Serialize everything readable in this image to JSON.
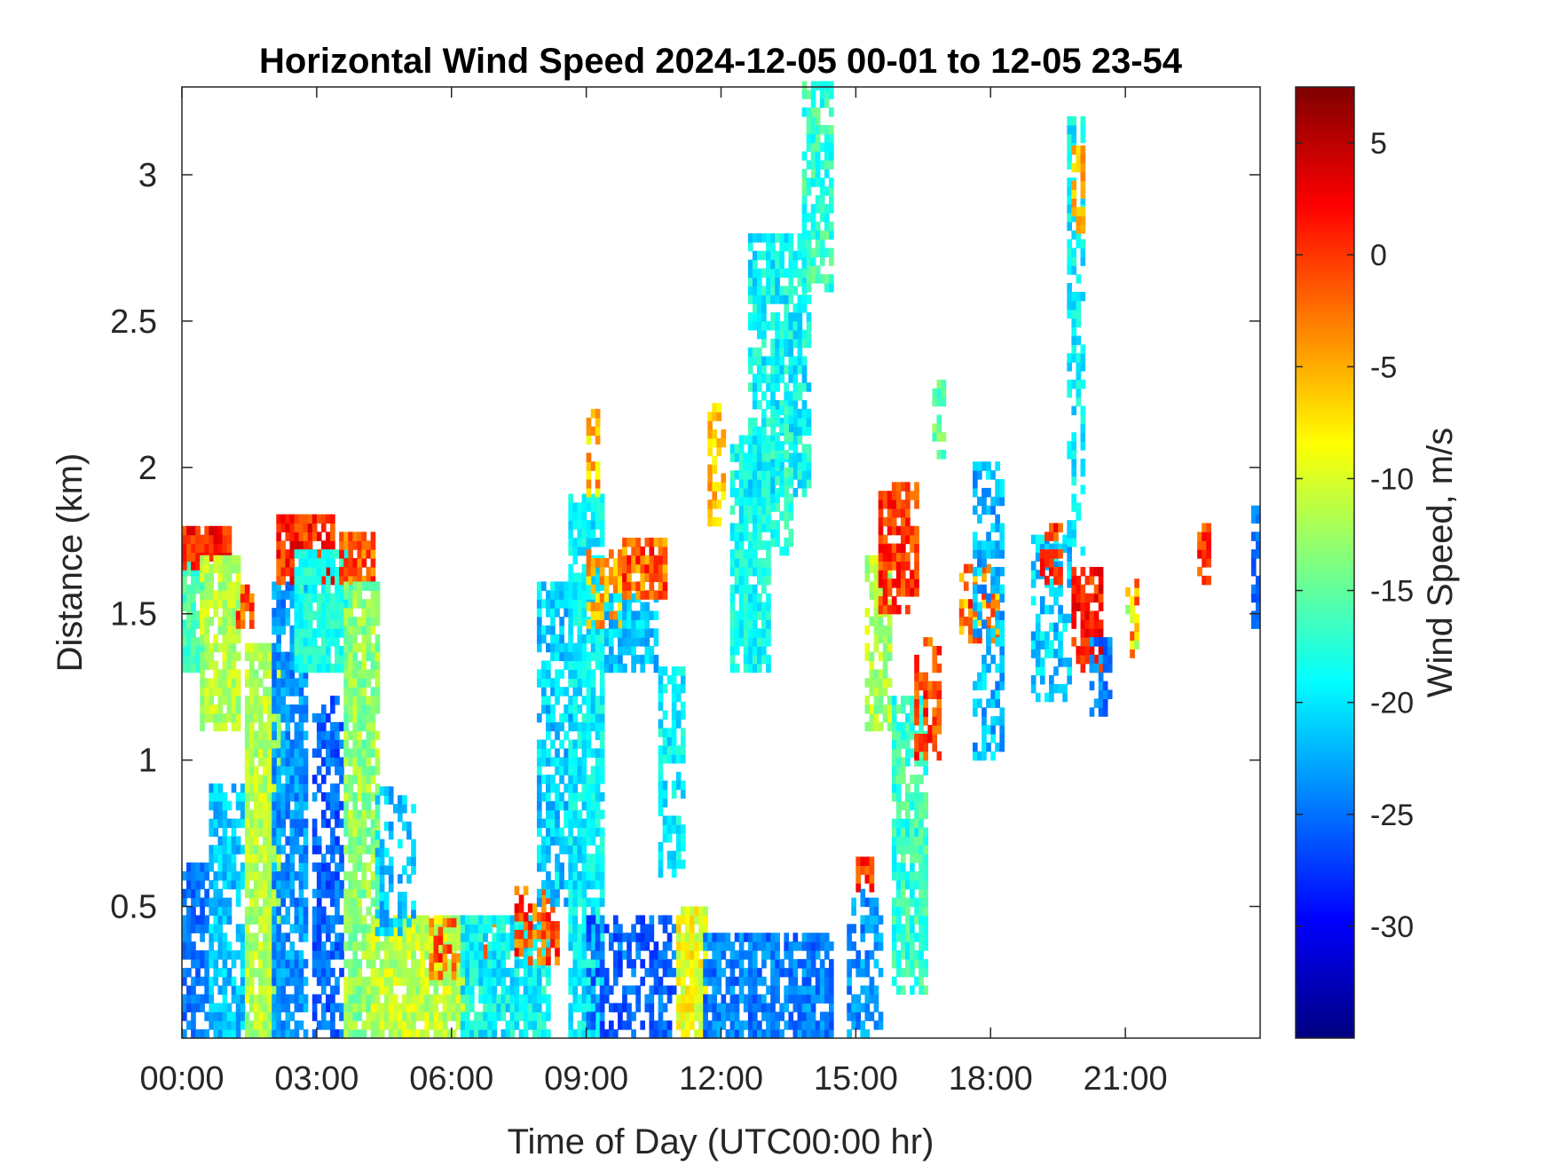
{
  "chart_data": {
    "type": "heatmap",
    "title": "Horizontal Wind Speed 2024-12-05 00-01 to 12-05 23-54",
    "xlabel": "Time of Day (UTC00:00 hr)",
    "ylabel": "Distance (km)",
    "xlim_hours": [
      0,
      24
    ],
    "ylim_km": [
      0.05,
      3.3
    ],
    "x_ticks": [
      {
        "value": 0,
        "label": "00:00"
      },
      {
        "value": 3,
        "label": "03:00"
      },
      {
        "value": 6,
        "label": "06:00"
      },
      {
        "value": 9,
        "label": "09:00"
      },
      {
        "value": 12,
        "label": "12:00"
      },
      {
        "value": 15,
        "label": "15:00"
      },
      {
        "value": 18,
        "label": "18:00"
      },
      {
        "value": 21,
        "label": "21:00"
      }
    ],
    "y_ticks": [
      {
        "value": 0.5,
        "label": "0.5"
      },
      {
        "value": 1,
        "label": "1"
      },
      {
        "value": 1.5,
        "label": "1.5"
      },
      {
        "value": 2,
        "label": "2"
      },
      {
        "value": 2.5,
        "label": "2.5"
      },
      {
        "value": 3,
        "label": "3"
      }
    ],
    "colorbar": {
      "label": "Wind Speed, m/s",
      "colormap": "jet",
      "range": [
        -35,
        7.5
      ],
      "ticks": [
        {
          "value": 5,
          "label": "5"
        },
        {
          "value": 0,
          "label": "0"
        },
        {
          "value": -5,
          "label": "-5"
        },
        {
          "value": -10,
          "label": "-10"
        },
        {
          "value": -15,
          "label": "-15"
        },
        {
          "value": -20,
          "label": "-20"
        },
        {
          "value": -25,
          "label": "-25"
        },
        {
          "value": -30,
          "label": "-30"
        }
      ]
    },
    "grid": false,
    "cell_size": {
      "hours": 0.1,
      "km": 0.03
    },
    "regions": [
      {
        "t": [
          0.0,
          0.6
        ],
        "z": [
          0.05,
          0.65
        ],
        "v": [
          -27,
          -23
        ],
        "density": 0.7
      },
      {
        "t": [
          0.0,
          0.5
        ],
        "z": [
          1.3,
          1.75
        ],
        "v": [
          -18,
          -14
        ],
        "density": 0.9
      },
      {
        "t": [
          0.0,
          1.1
        ],
        "z": [
          1.65,
          1.8
        ],
        "v": [
          -2,
          4
        ],
        "density": 0.9
      },
      {
        "t": [
          0.4,
          1.3
        ],
        "z": [
          1.1,
          1.7
        ],
        "v": [
          -14,
          -9
        ],
        "density": 0.9
      },
      {
        "t": [
          0.6,
          1.4
        ],
        "z": [
          0.05,
          0.9
        ],
        "v": [
          -24,
          -19
        ],
        "density": 0.75
      },
      {
        "t": [
          1.2,
          1.6
        ],
        "z": [
          1.45,
          1.6
        ],
        "v": [
          -5,
          2
        ],
        "density": 0.7
      },
      {
        "t": [
          1.4,
          2.2
        ],
        "z": [
          0.05,
          1.4
        ],
        "v": [
          -14,
          -9
        ],
        "density": 0.9
      },
      {
        "t": [
          2.0,
          2.8
        ],
        "z": [
          0.05,
          1.6
        ],
        "v": [
          -26,
          -21
        ],
        "density": 0.8
      },
      {
        "t": [
          2.1,
          3.4
        ],
        "z": [
          1.6,
          1.82
        ],
        "v": [
          -3,
          4
        ],
        "density": 0.9
      },
      {
        "t": [
          2.5,
          3.8
        ],
        "z": [
          1.3,
          1.7
        ],
        "v": [
          -20,
          -16
        ],
        "density": 0.9
      },
      {
        "t": [
          2.9,
          3.6
        ],
        "z": [
          0.05,
          1.2
        ],
        "v": [
          -28,
          -23
        ],
        "density": 0.65
      },
      {
        "t": [
          3.5,
          4.3
        ],
        "z": [
          1.6,
          1.78
        ],
        "v": [
          -5,
          2
        ],
        "density": 0.85
      },
      {
        "t": [
          3.6,
          4.4
        ],
        "z": [
          0.05,
          1.6
        ],
        "v": [
          -16,
          -10
        ],
        "density": 0.85
      },
      {
        "t": [
          4.2,
          6.3
        ],
        "z": [
          0.05,
          0.45
        ],
        "v": [
          -14,
          -8
        ],
        "density": 0.92
      },
      {
        "t": [
          4.3,
          5.2
        ],
        "z": [
          0.4,
          0.9
        ],
        "v": [
          -24,
          -19
        ],
        "density": 0.45
      },
      {
        "t": [
          5.5,
          7.2
        ],
        "z": [
          0.25,
          0.45
        ],
        "v": [
          -6,
          3
        ],
        "density": 0.55
      },
      {
        "t": [
          6.2,
          8.2
        ],
        "z": [
          0.05,
          0.45
        ],
        "v": [
          -22,
          -16
        ],
        "density": 0.9
      },
      {
        "t": [
          7.4,
          8.4
        ],
        "z": [
          0.3,
          0.55
        ],
        "v": [
          -5,
          3
        ],
        "density": 0.55
      },
      {
        "t": [
          7.9,
          8.7
        ],
        "z": [
          0.5,
          1.6
        ],
        "v": [
          -24,
          -18
        ],
        "density": 0.65
      },
      {
        "t": [
          8.6,
          9.4
        ],
        "z": [
          0.05,
          1.9
        ],
        "v": [
          -22,
          -17
        ],
        "density": 0.85
      },
      {
        "t": [
          9.0,
          9.3
        ],
        "z": [
          1.9,
          2.2
        ],
        "v": [
          -10,
          -2
        ],
        "density": 0.7
      },
      {
        "t": [
          9.0,
          9.8
        ],
        "z": [
          1.45,
          1.7
        ],
        "v": [
          -8,
          -2
        ],
        "density": 0.75
      },
      {
        "t": [
          9.4,
          10.6
        ],
        "z": [
          1.3,
          1.55
        ],
        "v": [
          -24,
          -19
        ],
        "density": 0.75
      },
      {
        "t": [
          9.8,
          10.8
        ],
        "z": [
          1.55,
          1.75
        ],
        "v": [
          -6,
          3
        ],
        "density": 0.85
      },
      {
        "t": [
          9.0,
          11.0
        ],
        "z": [
          0.05,
          0.45
        ],
        "v": [
          -28,
          -23
        ],
        "density": 0.6
      },
      {
        "t": [
          10.6,
          11.2
        ],
        "z": [
          0.6,
          1.3
        ],
        "v": [
          -22,
          -17
        ],
        "density": 0.7
      },
      {
        "t": [
          11.0,
          11.7
        ],
        "z": [
          0.05,
          0.5
        ],
        "v": [
          -12,
          -6
        ],
        "density": 0.85
      },
      {
        "t": [
          11.6,
          14.5
        ],
        "z": [
          0.05,
          0.4
        ],
        "v": [
          -27,
          -22
        ],
        "density": 0.8
      },
      {
        "t": [
          12.2,
          13.1
        ],
        "z": [
          1.3,
          2.1
        ],
        "v": [
          -21,
          -16
        ],
        "density": 0.85
      },
      {
        "t": [
          11.7,
          12.1
        ],
        "z": [
          1.8,
          2.2
        ],
        "v": [
          -9,
          -3
        ],
        "density": 0.6
      },
      {
        "t": [
          12.6,
          14.0
        ],
        "z": [
          1.9,
          2.8
        ],
        "v": [
          -22,
          -16
        ],
        "density": 0.75
      },
      {
        "t": [
          13.1,
          13.6
        ],
        "z": [
          1.7,
          2.2
        ],
        "v": [
          -20,
          -15
        ],
        "density": 0.6
      },
      {
        "t": [
          13.8,
          14.5
        ],
        "z": [
          2.6,
          3.3
        ],
        "v": [
          -20,
          -14
        ],
        "density": 0.7
      },
      {
        "t": [
          15.0,
          15.4
        ],
        "z": [
          0.55,
          0.65
        ],
        "v": [
          -3,
          3
        ],
        "density": 0.8
      },
      {
        "t": [
          14.8,
          15.6
        ],
        "z": [
          0.05,
          0.55
        ],
        "v": [
          -26,
          -21
        ],
        "density": 0.6
      },
      {
        "t": [
          15.2,
          15.8
        ],
        "z": [
          1.1,
          1.7
        ],
        "v": [
          -15,
          -9
        ],
        "density": 0.8
      },
      {
        "t": [
          15.5,
          16.4
        ],
        "z": [
          1.5,
          1.95
        ],
        "v": [
          -3,
          3
        ],
        "density": 0.75
      },
      {
        "t": [
          15.8,
          16.6
        ],
        "z": [
          0.2,
          1.2
        ],
        "v": [
          -20,
          -14
        ],
        "density": 0.8
      },
      {
        "t": [
          16.3,
          16.9
        ],
        "z": [
          1.0,
          1.4
        ],
        "v": [
          -4,
          3
        ],
        "density": 0.6
      },
      {
        "t": [
          16.7,
          17.0
        ],
        "z": [
          2.0,
          2.3
        ],
        "v": [
          -18,
          -12
        ],
        "density": 0.5
      },
      {
        "t": [
          17.3,
          18.2
        ],
        "z": [
          1.4,
          1.65
        ],
        "v": [
          -8,
          2
        ],
        "density": 0.6
      },
      {
        "t": [
          17.6,
          18.3
        ],
        "z": [
          1.0,
          2.0
        ],
        "v": [
          -25,
          -19
        ],
        "density": 0.5
      },
      {
        "t": [
          18.9,
          19.8
        ],
        "z": [
          1.2,
          1.75
        ],
        "v": [
          -24,
          -18
        ],
        "density": 0.55
      },
      {
        "t": [
          19.1,
          19.6
        ],
        "z": [
          1.6,
          1.8
        ],
        "v": [
          -3,
          3
        ],
        "density": 0.6
      },
      {
        "t": [
          19.8,
          20.5
        ],
        "z": [
          1.3,
          1.65
        ],
        "v": [
          -2,
          4
        ],
        "density": 0.75
      },
      {
        "t": [
          20.2,
          20.7
        ],
        "z": [
          1.15,
          1.4
        ],
        "v": [
          -27,
          -22
        ],
        "density": 0.6
      },
      {
        "t": [
          19.7,
          20.1
        ],
        "z": [
          1.7,
          3.2
        ],
        "v": [
          -22,
          -17
        ],
        "density": 0.6
      },
      {
        "t": [
          19.8,
          20.1
        ],
        "z": [
          2.8,
          3.1
        ],
        "v": [
          -8,
          -3
        ],
        "density": 0.7
      },
      {
        "t": [
          21.0,
          21.3
        ],
        "z": [
          1.35,
          1.6
        ],
        "v": [
          -14,
          0
        ],
        "density": 0.7
      },
      {
        "t": [
          22.6,
          22.9
        ],
        "z": [
          1.6,
          1.8
        ],
        "v": [
          -3,
          3
        ],
        "density": 0.8
      },
      {
        "t": [
          23.8,
          24.0
        ],
        "z": [
          1.45,
          1.85
        ],
        "v": [
          -27,
          -23
        ],
        "density": 0.8
      }
    ]
  }
}
